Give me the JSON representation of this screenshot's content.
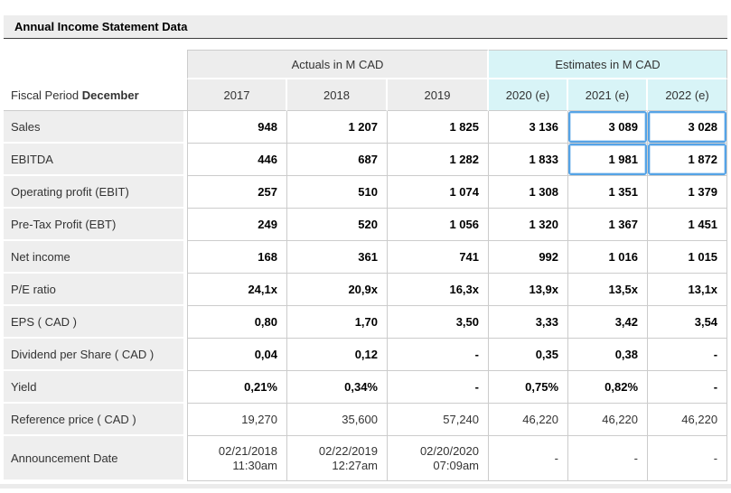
{
  "title": "Annual Income Statement Data",
  "table": {
    "group_headers": {
      "actuals": "Actuals in M CAD",
      "estimates": "Estimates in M CAD"
    },
    "fiscal_label": {
      "prefix": "Fiscal Period",
      "bold": "December"
    },
    "year_headers": [
      "2017",
      "2018",
      "2019",
      "2020 (e)",
      "2021 (e)",
      "2022 (e)"
    ],
    "rows": [
      {
        "label": "Sales",
        "values": [
          "948",
          "1 207",
          "1 825",
          "3 136",
          "3 089",
          "3 028"
        ],
        "bold": true,
        "highlight": [
          4,
          5
        ]
      },
      {
        "label": "EBITDA",
        "values": [
          "446",
          "687",
          "1 282",
          "1 833",
          "1 981",
          "1 872"
        ],
        "bold": true,
        "highlight": [
          4,
          5
        ]
      },
      {
        "label": "Operating profit (EBIT)",
        "values": [
          "257",
          "510",
          "1 074",
          "1 308",
          "1 351",
          "1 379"
        ],
        "bold": true
      },
      {
        "label": "Pre-Tax Profit (EBT)",
        "values": [
          "249",
          "520",
          "1 056",
          "1 320",
          "1 367",
          "1 451"
        ],
        "bold": true
      },
      {
        "label": "Net income",
        "values": [
          "168",
          "361",
          "741",
          "992",
          "1 016",
          "1 015"
        ],
        "bold": true
      },
      {
        "label": "P/E ratio",
        "values": [
          "24,1x",
          "20,9x",
          "16,3x",
          "13,9x",
          "13,5x",
          "13,1x"
        ],
        "bold": true
      },
      {
        "label": "EPS ( CAD )",
        "values": [
          "0,80",
          "1,70",
          "3,50",
          "3,33",
          "3,42",
          "3,54"
        ],
        "bold": true
      },
      {
        "label": "Dividend per Share ( CAD )",
        "values": [
          "0,04",
          "0,12",
          "-",
          "0,35",
          "0,38",
          "-"
        ],
        "bold": true
      },
      {
        "label": "Yield",
        "values": [
          "0,21%",
          "0,34%",
          "-",
          "0,75%",
          "0,82%",
          "-"
        ],
        "bold": true
      },
      {
        "label": "Reference price ( CAD )",
        "values": [
          "19,270",
          "35,600",
          "57,240",
          "46,220",
          "46,220",
          "46,220"
        ],
        "bold": false
      },
      {
        "label": "Announcement Date",
        "values": [
          "02/21/2018\n11:30am",
          "02/22/2019\n12:27am",
          "02/20/2020\n07:09am",
          "-",
          "-",
          "-"
        ],
        "bold": false,
        "tall": true
      }
    ],
    "colors": {
      "accent_blue": "#55a3e6",
      "estimates_bg": "#d8f4f7",
      "header_bg": "#ededed",
      "border": "#cccccc"
    }
  }
}
